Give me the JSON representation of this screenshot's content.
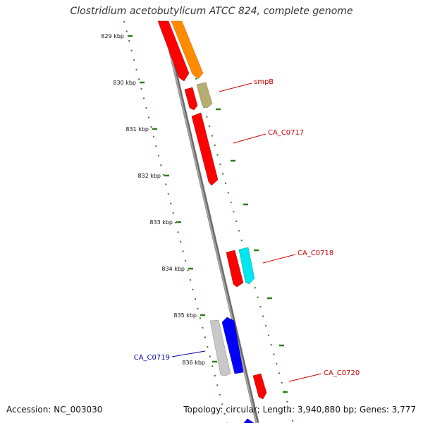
{
  "title": "Clostridium acetobutylicum ATCC 824, complete genome",
  "footer": {
    "accession": "Accession: NC_003030",
    "summary": "Topology: circular; Length: 3,940,880 bp; Genes: 3,777"
  },
  "kbp_ticks": [
    {
      "label": "829 kbp"
    },
    {
      "label": "830 kbp"
    },
    {
      "label": "831 kbp"
    },
    {
      "label": "832 kbp"
    },
    {
      "label": "833 kbp"
    },
    {
      "label": "834 kbp"
    },
    {
      "label": "835 kbp"
    },
    {
      "label": "836 kbp"
    }
  ],
  "gene_labels": [
    {
      "name": "smpB",
      "color": "#cc0000"
    },
    {
      "name": "CA_C0717",
      "color": "#cc0000"
    },
    {
      "name": "CA_C0718",
      "color": "#cc0000"
    },
    {
      "name": "CA_C0719",
      "color": "#0000aa"
    },
    {
      "name": "CA_C0720",
      "color": "#cc0000"
    }
  ],
  "colors": {
    "backbone": "#8c8c8c",
    "tick_dots": "#2e7d1a",
    "gene_red": "#ff0000",
    "gene_orange": "#ff8c00",
    "gene_khaki": "#b5ad72",
    "gene_cyan": "#00e5ee",
    "gene_blue": "#0000ff",
    "gene_gray": "#c8c8c8"
  }
}
